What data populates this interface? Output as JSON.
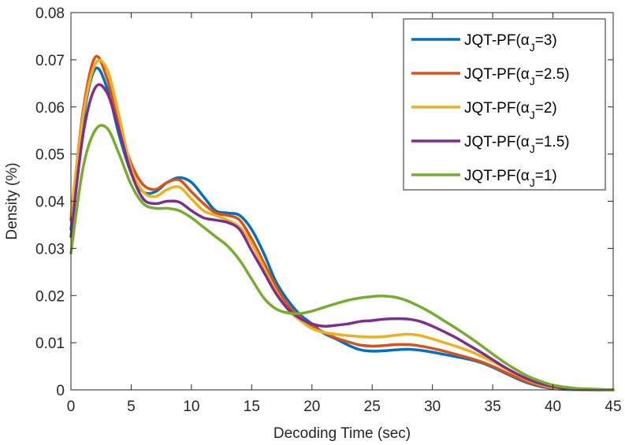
{
  "chart_data": {
    "type": "line",
    "title": "",
    "xlabel": "Decoding Time (sec)",
    "ylabel": "Density (%)",
    "xlim": [
      0,
      45
    ],
    "ylim": [
      0,
      0.08
    ],
    "x_ticks": [
      0,
      5,
      10,
      15,
      20,
      25,
      30,
      35,
      40,
      45
    ],
    "y_ticks": [
      0,
      0.01,
      0.02,
      0.03,
      0.04,
      0.05,
      0.06,
      0.07,
      0.08
    ],
    "x_tick_labels": [
      "0",
      "5",
      "10",
      "15",
      "20",
      "25",
      "30",
      "35",
      "40",
      "45"
    ],
    "y_tick_labels": [
      "0",
      "0.01",
      "0.02",
      "0.03",
      "0.04",
      "0.05",
      "0.06",
      "0.07",
      "0.08"
    ],
    "grid": false,
    "legend_position": "top-right",
    "series": [
      {
        "name": "JQT-PF(αJ=3)",
        "label_prefix": "JQT-PF(",
        "label_alpha": "α",
        "label_sub": "J",
        "label_suffix": "=3)",
        "color": "#0072BD",
        "points": [
          [
            0,
            0.034
          ],
          [
            1,
            0.057
          ],
          [
            2,
            0.068
          ],
          [
            3,
            0.064
          ],
          [
            4,
            0.054
          ],
          [
            5,
            0.046
          ],
          [
            6,
            0.042
          ],
          [
            7,
            0.042
          ],
          [
            8,
            0.044
          ],
          [
            9,
            0.045
          ],
          [
            10,
            0.044
          ],
          [
            11,
            0.041
          ],
          [
            12,
            0.038
          ],
          [
            13,
            0.0375
          ],
          [
            14,
            0.037
          ],
          [
            15,
            0.034
          ],
          [
            16,
            0.029
          ],
          [
            17,
            0.023
          ],
          [
            18,
            0.019
          ],
          [
            19,
            0.016
          ],
          [
            20,
            0.014
          ],
          [
            21,
            0.012
          ],
          [
            22,
            0.0108
          ],
          [
            23,
            0.0095
          ],
          [
            24,
            0.0085
          ],
          [
            25,
            0.0082
          ],
          [
            26,
            0.0083
          ],
          [
            27,
            0.0085
          ],
          [
            28,
            0.0086
          ],
          [
            29,
            0.0084
          ],
          [
            30,
            0.008
          ],
          [
            31,
            0.0075
          ],
          [
            32,
            0.007
          ],
          [
            33,
            0.0065
          ],
          [
            34,
            0.0058
          ],
          [
            35,
            0.0048
          ],
          [
            36,
            0.0036
          ],
          [
            37,
            0.0024
          ],
          [
            38,
            0.0014
          ],
          [
            39,
            0.0007
          ],
          [
            40,
            0.0003
          ],
          [
            41,
            0.0001
          ],
          [
            42,
            5e-05
          ],
          [
            45,
            0.0
          ]
        ]
      },
      {
        "name": "JQT-PF(αJ=2.5)",
        "label_prefix": "JQT-PF(",
        "label_alpha": "α",
        "label_sub": "J",
        "label_suffix": "=2.5)",
        "color": "#D95319",
        "points": [
          [
            0,
            0.036
          ],
          [
            1,
            0.059
          ],
          [
            2,
            0.0705
          ],
          [
            3,
            0.066
          ],
          [
            4,
            0.056
          ],
          [
            5,
            0.048
          ],
          [
            6,
            0.0435
          ],
          [
            7,
            0.0425
          ],
          [
            8,
            0.044
          ],
          [
            9,
            0.0445
          ],
          [
            10,
            0.042
          ],
          [
            11,
            0.0395
          ],
          [
            12,
            0.0375
          ],
          [
            13,
            0.037
          ],
          [
            14,
            0.036
          ],
          [
            15,
            0.032
          ],
          [
            16,
            0.027
          ],
          [
            17,
            0.022
          ],
          [
            18,
            0.018
          ],
          [
            19,
            0.0155
          ],
          [
            20,
            0.0135
          ],
          [
            21,
            0.0122
          ],
          [
            22,
            0.011
          ],
          [
            23,
            0.0102
          ],
          [
            24,
            0.0095
          ],
          [
            25,
            0.0093
          ],
          [
            26,
            0.0094
          ],
          [
            27,
            0.0096
          ],
          [
            28,
            0.0096
          ],
          [
            29,
            0.0093
          ],
          [
            30,
            0.0088
          ],
          [
            31,
            0.0082
          ],
          [
            32,
            0.0075
          ],
          [
            33,
            0.0068
          ],
          [
            34,
            0.006
          ],
          [
            35,
            0.005
          ],
          [
            36,
            0.0038
          ],
          [
            37,
            0.0026
          ],
          [
            38,
            0.0016
          ],
          [
            39,
            0.0009
          ],
          [
            40,
            0.0004
          ],
          [
            41,
            0.0002
          ],
          [
            42,
            0.0001
          ],
          [
            45,
            0.0
          ]
        ]
      },
      {
        "name": "JQT-PF(αJ=2)",
        "label_prefix": "JQT-PF(",
        "label_alpha": "α",
        "label_sub": "J",
        "label_suffix": "=2)",
        "color": "#EDB120",
        "points": [
          [
            0,
            0.037
          ],
          [
            1,
            0.058
          ],
          [
            2,
            0.069
          ],
          [
            3,
            0.068
          ],
          [
            4,
            0.058
          ],
          [
            5,
            0.047
          ],
          [
            6,
            0.042
          ],
          [
            7,
            0.041
          ],
          [
            8,
            0.0425
          ],
          [
            9,
            0.043
          ],
          [
            10,
            0.0405
          ],
          [
            11,
            0.038
          ],
          [
            12,
            0.037
          ],
          [
            13,
            0.036
          ],
          [
            14,
            0.0345
          ],
          [
            15,
            0.031
          ],
          [
            16,
            0.026
          ],
          [
            17,
            0.021
          ],
          [
            18,
            0.017
          ],
          [
            19,
            0.0148
          ],
          [
            20,
            0.013
          ],
          [
            21,
            0.0122
          ],
          [
            22,
            0.0118
          ],
          [
            23,
            0.0115
          ],
          [
            24,
            0.0113
          ],
          [
            25,
            0.0112
          ],
          [
            26,
            0.0113
          ],
          [
            27,
            0.0116
          ],
          [
            28,
            0.0118
          ],
          [
            29,
            0.0115
          ],
          [
            30,
            0.0108
          ],
          [
            31,
            0.01
          ],
          [
            32,
            0.0092
          ],
          [
            33,
            0.0083
          ],
          [
            34,
            0.0072
          ],
          [
            35,
            0.006
          ],
          [
            36,
            0.0046
          ],
          [
            37,
            0.0032
          ],
          [
            38,
            0.002
          ],
          [
            39,
            0.0011
          ],
          [
            40,
            0.0005
          ],
          [
            41,
            0.0002
          ],
          [
            42,
            0.0001
          ],
          [
            45,
            0.0
          ]
        ]
      },
      {
        "name": "JQT-PF(αJ=1.5)",
        "label_prefix": "JQT-PF(",
        "label_alpha": "α",
        "label_sub": "J",
        "label_suffix": "=1.5)",
        "color": "#7E2F8E",
        "points": [
          [
            0,
            0.0325
          ],
          [
            1,
            0.054
          ],
          [
            2,
            0.064
          ],
          [
            3,
            0.063
          ],
          [
            4,
            0.055
          ],
          [
            5,
            0.046
          ],
          [
            6,
            0.0405
          ],
          [
            7,
            0.0395
          ],
          [
            8,
            0.04
          ],
          [
            9,
            0.0398
          ],
          [
            10,
            0.038
          ],
          [
            11,
            0.0365
          ],
          [
            12,
            0.036
          ],
          [
            13,
            0.0355
          ],
          [
            14,
            0.034
          ],
          [
            15,
            0.0295
          ],
          [
            16,
            0.025
          ],
          [
            17,
            0.0205
          ],
          [
            18,
            0.0172
          ],
          [
            19,
            0.0152
          ],
          [
            20,
            0.014
          ],
          [
            21,
            0.0135
          ],
          [
            22,
            0.0137
          ],
          [
            23,
            0.014
          ],
          [
            24,
            0.0145
          ],
          [
            25,
            0.0147
          ],
          [
            26,
            0.015
          ],
          [
            27,
            0.0151
          ],
          [
            28,
            0.015
          ],
          [
            29,
            0.0145
          ],
          [
            30,
            0.0135
          ],
          [
            31,
            0.0123
          ],
          [
            32,
            0.011
          ],
          [
            33,
            0.0095
          ],
          [
            34,
            0.008
          ],
          [
            35,
            0.0064
          ],
          [
            36,
            0.0048
          ],
          [
            37,
            0.0034
          ],
          [
            38,
            0.0022
          ],
          [
            39,
            0.0013
          ],
          [
            40,
            0.0007
          ],
          [
            41,
            0.0003
          ],
          [
            42,
            0.0001
          ],
          [
            45,
            0.0
          ]
        ]
      },
      {
        "name": "JQT-PF(αJ=1)",
        "label_prefix": "JQT-PF(",
        "label_alpha": "α",
        "label_sub": "J",
        "label_suffix": "=1)",
        "color": "#77AC30",
        "points": [
          [
            0,
            0.029
          ],
          [
            1,
            0.047
          ],
          [
            2,
            0.055
          ],
          [
            3,
            0.0555
          ],
          [
            4,
            0.05
          ],
          [
            5,
            0.0435
          ],
          [
            6,
            0.0395
          ],
          [
            7,
            0.0385
          ],
          [
            8,
            0.0385
          ],
          [
            9,
            0.038
          ],
          [
            10,
            0.0365
          ],
          [
            11,
            0.0345
          ],
          [
            12,
            0.0325
          ],
          [
            13,
            0.0305
          ],
          [
            14,
            0.0275
          ],
          [
            15,
            0.0235
          ],
          [
            16,
            0.0195
          ],
          [
            17,
            0.0172
          ],
          [
            18,
            0.0163
          ],
          [
            19,
            0.0162
          ],
          [
            20,
            0.0167
          ],
          [
            21,
            0.0175
          ],
          [
            22,
            0.0183
          ],
          [
            23,
            0.019
          ],
          [
            24,
            0.0195
          ],
          [
            25,
            0.0198
          ],
          [
            26,
            0.0199
          ],
          [
            27,
            0.0196
          ],
          [
            28,
            0.0188
          ],
          [
            29,
            0.0176
          ],
          [
            30,
            0.0162
          ],
          [
            31,
            0.0146
          ],
          [
            32,
            0.013
          ],
          [
            33,
            0.0113
          ],
          [
            34,
            0.0095
          ],
          [
            35,
            0.0076
          ],
          [
            36,
            0.0058
          ],
          [
            37,
            0.0042
          ],
          [
            38,
            0.0028
          ],
          [
            39,
            0.0018
          ],
          [
            40,
            0.001
          ],
          [
            41,
            0.0006
          ],
          [
            42,
            0.0003
          ],
          [
            43,
            0.0002
          ],
          [
            44,
            0.0001
          ],
          [
            45,
            0.0
          ]
        ]
      }
    ]
  }
}
